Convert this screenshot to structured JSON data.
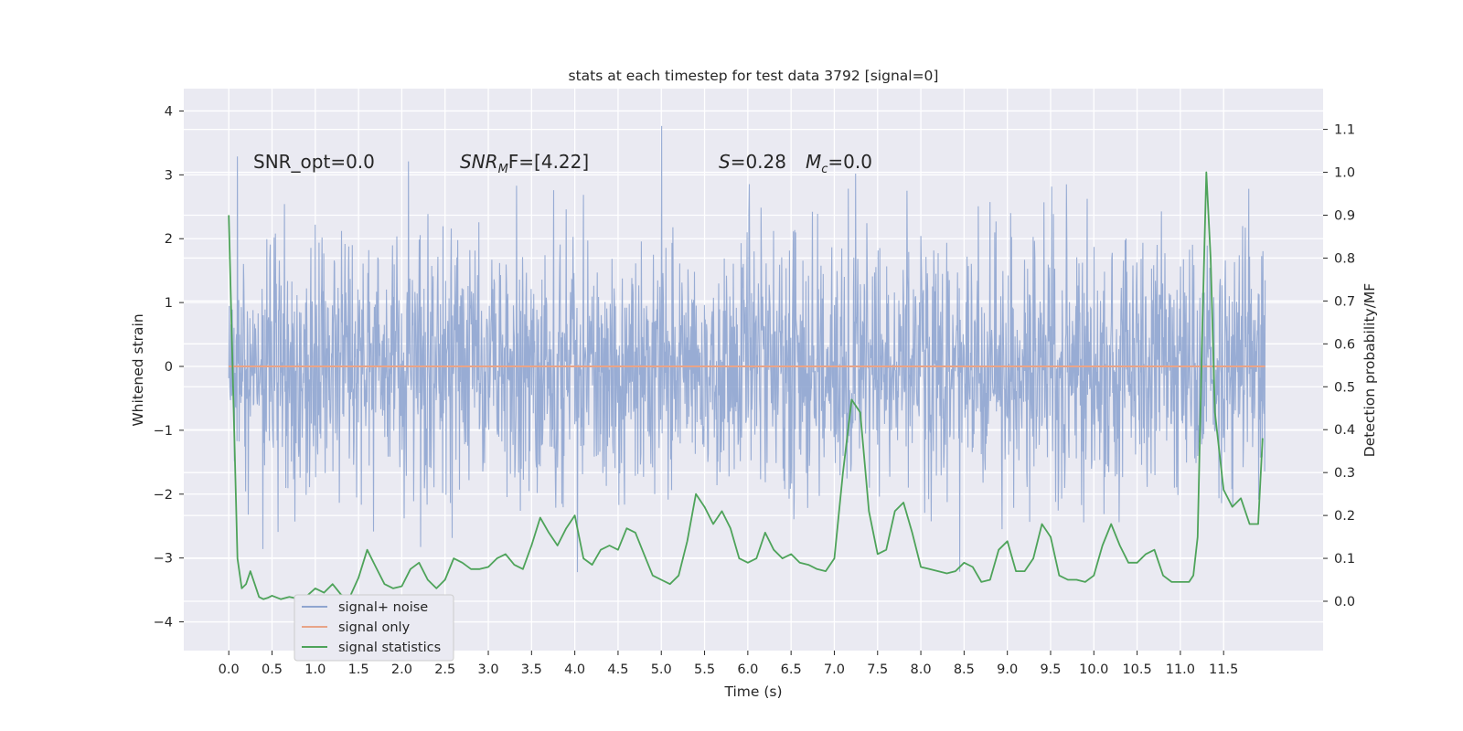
{
  "chart_data": {
    "type": "line",
    "title": "stats at each timestep for test data 3792 [signal=0]",
    "xlabel": "Time (s)",
    "ylabel": "Whitened strain",
    "y2label": "Detection probability/MF",
    "xlim": [
      -0.52,
      12.65
    ],
    "ylim": [
      -4.45,
      4.35
    ],
    "y2lim": [
      -0.115,
      1.195
    ],
    "x_ticks": [
      "0.0",
      "0.5",
      "1.0",
      "1.5",
      "2.0",
      "2.5",
      "3.0",
      "3.5",
      "4.0",
      "4.5",
      "5.0",
      "5.5",
      "6.0",
      "6.5",
      "7.0",
      "7.5",
      "8.0",
      "8.5",
      "9.0",
      "9.5",
      "10.0",
      "10.5",
      "11.0",
      "11.5"
    ],
    "y_ticks": [
      "4",
      "3",
      "2",
      "1",
      "0",
      "−1",
      "−2",
      "−3",
      "−4"
    ],
    "y2_ticks": [
      "1.1",
      "1.0",
      "0.9",
      "0.8",
      "0.7",
      "0.6",
      "0.5",
      "0.4",
      "0.3",
      "0.2",
      "0.1",
      "0.0"
    ],
    "grid": true,
    "legend_position": "lower-left",
    "annotations": {
      "snr_opt": "SNR_opt=0.0",
      "snr_mf_name": "SNR",
      "snr_mf_sub": "M",
      "snr_mf_rest": "F=[4.22]",
      "s_name": "S",
      "s_rest": "=0.28",
      "mc_name": "M",
      "mc_sub": "c",
      "mc_rest": "=0.0"
    },
    "series": [
      {
        "name": "signal+ noise",
        "color": "#8fa5d0",
        "axis": "left",
        "description_values": "white noise whitened strain, approx mean 0, std 1, range -4.1 to 4.0",
        "x_range": [
          0.0,
          11.98
        ],
        "values_stats": {
          "mean": 0.0,
          "std": 1.0,
          "min": -4.1,
          "max": 4.0
        }
      },
      {
        "name": "signal only",
        "color": "#e8a488",
        "axis": "left",
        "x": [
          0.0,
          11.98
        ],
        "values": [
          0.0,
          0.0
        ]
      },
      {
        "name": "signal statistics",
        "color": "#4ea35a",
        "axis": "right",
        "x": [
          0.0,
          0.05,
          0.1,
          0.15,
          0.2,
          0.25,
          0.3,
          0.35,
          0.4,
          0.45,
          0.5,
          0.6,
          0.7,
          0.8,
          0.9,
          1.0,
          1.1,
          1.2,
          1.3,
          1.4,
          1.5,
          1.6,
          1.7,
          1.8,
          1.9,
          2.0,
          2.1,
          2.2,
          2.3,
          2.4,
          2.5,
          2.6,
          2.7,
          2.8,
          2.9,
          3.0,
          3.1,
          3.2,
          3.3,
          3.4,
          3.5,
          3.6,
          3.7,
          3.8,
          3.9,
          4.0,
          4.1,
          4.2,
          4.3,
          4.4,
          4.5,
          4.6,
          4.7,
          4.8,
          4.9,
          5.0,
          5.1,
          5.2,
          5.3,
          5.4,
          5.5,
          5.6,
          5.7,
          5.8,
          5.9,
          6.0,
          6.1,
          6.2,
          6.3,
          6.4,
          6.5,
          6.6,
          6.7,
          6.8,
          6.9,
          7.0,
          7.1,
          7.2,
          7.3,
          7.4,
          7.5,
          7.6,
          7.7,
          7.8,
          7.9,
          8.0,
          8.1,
          8.2,
          8.3,
          8.4,
          8.5,
          8.6,
          8.7,
          8.8,
          8.9,
          9.0,
          9.1,
          9.2,
          9.3,
          9.4,
          9.5,
          9.6,
          9.7,
          9.8,
          9.9,
          10.0,
          10.1,
          10.2,
          10.3,
          10.4,
          10.5,
          10.6,
          10.7,
          10.8,
          10.9,
          11.0,
          11.1,
          11.15,
          11.2,
          11.25,
          11.3,
          11.35,
          11.4,
          11.5,
          11.6,
          11.7,
          11.8,
          11.9,
          11.95
        ],
        "values": [
          0.9,
          0.5,
          0.1,
          0.03,
          0.04,
          0.07,
          0.04,
          0.01,
          0.005,
          0.008,
          0.013,
          0.005,
          0.01,
          0.006,
          0.012,
          0.03,
          0.02,
          0.04,
          0.015,
          0.01,
          0.055,
          0.12,
          0.08,
          0.04,
          0.03,
          0.035,
          0.075,
          0.09,
          0.05,
          0.03,
          0.05,
          0.1,
          0.09,
          0.075,
          0.075,
          0.08,
          0.1,
          0.11,
          0.085,
          0.075,
          0.13,
          0.195,
          0.16,
          0.13,
          0.17,
          0.2,
          0.1,
          0.085,
          0.12,
          0.13,
          0.12,
          0.17,
          0.16,
          0.11,
          0.06,
          0.05,
          0.04,
          0.06,
          0.14,
          0.25,
          0.22,
          0.18,
          0.21,
          0.17,
          0.1,
          0.09,
          0.1,
          0.16,
          0.12,
          0.1,
          0.11,
          0.09,
          0.085,
          0.075,
          0.07,
          0.1,
          0.3,
          0.47,
          0.44,
          0.21,
          0.11,
          0.12,
          0.21,
          0.23,
          0.16,
          0.08,
          0.075,
          0.07,
          0.065,
          0.07,
          0.09,
          0.08,
          0.045,
          0.05,
          0.12,
          0.14,
          0.07,
          0.07,
          0.1,
          0.18,
          0.15,
          0.06,
          0.05,
          0.05,
          0.045,
          0.06,
          0.13,
          0.18,
          0.13,
          0.09,
          0.09,
          0.11,
          0.12,
          0.06,
          0.045,
          0.045,
          0.045,
          0.06,
          0.15,
          0.6,
          1.0,
          0.8,
          0.44,
          0.26,
          0.22,
          0.24,
          0.18,
          0.18,
          0.38
        ]
      }
    ]
  }
}
